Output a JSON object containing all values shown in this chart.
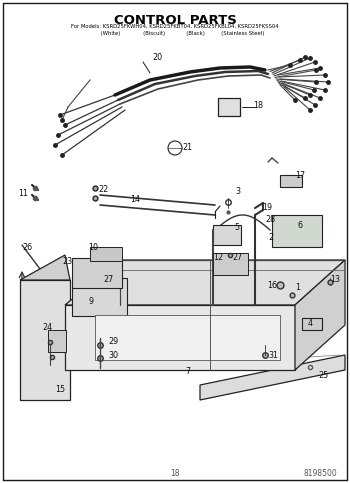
{
  "title": "CONTROL PARTS",
  "sub1": "For Models: KSRD25FKWH04, KSRD25FKBT04, KSRD25FKBL04, KSRD25FKSS04",
  "sub2": "             (White)              (Biscuit)             (Black)          (Stainless Steel)",
  "page_number": "18",
  "doc_number": "8198500",
  "bg_color": "#ffffff",
  "fig_width": 3.5,
  "fig_height": 4.83,
  "dpi": 100
}
